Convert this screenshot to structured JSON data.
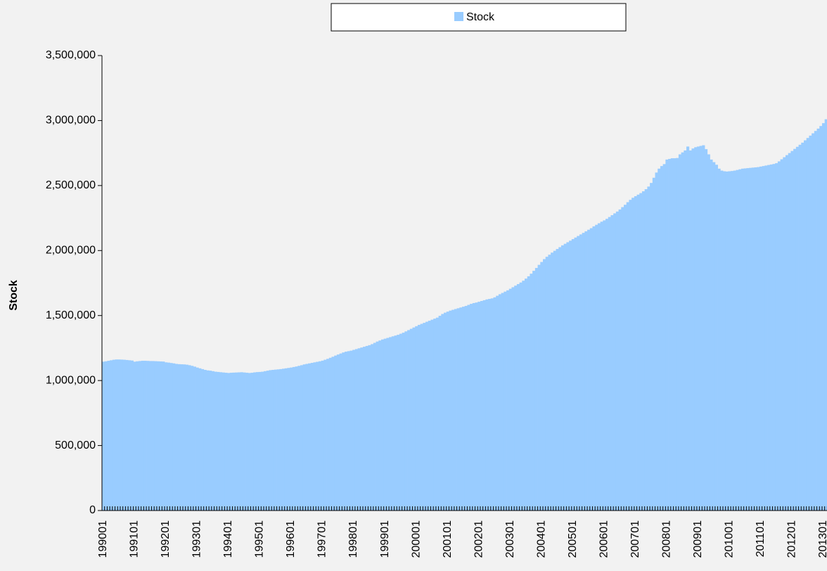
{
  "chart_data": {
    "type": "bar",
    "y_label": "Stock",
    "legend": "top",
    "ylim": [
      0,
      3500000
    ],
    "yticks": [
      0,
      {
        "value": 500000,
        "label": "500,000"
      },
      {
        "value": 1000000,
        "label": "1,000,000"
      },
      {
        "value": 1500000,
        "label": "1,500,000"
      },
      {
        "value": 2000000,
        "label": "2,000,000"
      },
      {
        "value": 2500000,
        "label": "2,500,000"
      },
      {
        "value": 3000000,
        "label": "3,000,000"
      },
      {
        "value": 3500000,
        "label": "3,500,000"
      }
    ],
    "categories": [
      "199001",
      null,
      null,
      null,
      null,
      null,
      null,
      null,
      null,
      null,
      null,
      null,
      "199101",
      null,
      null,
      null,
      null,
      null,
      null,
      null,
      null,
      null,
      null,
      null,
      "199201",
      null,
      null,
      null,
      null,
      null,
      null,
      null,
      null,
      null,
      null,
      null,
      "199301",
      null,
      null,
      null,
      null,
      null,
      null,
      null,
      null,
      null,
      null,
      null,
      "199401",
      null,
      null,
      null,
      null,
      null,
      null,
      null,
      null,
      null,
      null,
      null,
      "199501",
      null,
      null,
      null,
      null,
      null,
      null,
      null,
      null,
      null,
      null,
      null,
      "199601",
      null,
      null,
      null,
      null,
      null,
      null,
      null,
      null,
      null,
      null,
      null,
      "199701",
      null,
      null,
      null,
      null,
      null,
      null,
      null,
      null,
      null,
      null,
      null,
      "199801",
      null,
      null,
      null,
      null,
      null,
      null,
      null,
      null,
      null,
      null,
      null,
      "199901",
      null,
      null,
      null,
      null,
      null,
      null,
      null,
      null,
      null,
      null,
      null,
      "200001",
      null,
      null,
      null,
      null,
      null,
      null,
      null,
      null,
      null,
      null,
      null,
      "200101",
      null,
      null,
      null,
      null,
      null,
      null,
      null,
      null,
      null,
      null,
      null,
      "200201",
      null,
      null,
      null,
      null,
      null,
      null,
      null,
      null,
      null,
      null,
      null,
      "200301",
      null,
      null,
      null,
      null,
      null,
      null,
      null,
      null,
      null,
      null,
      null,
      "200401",
      null,
      null,
      null,
      null,
      null,
      null,
      null,
      null,
      null,
      null,
      null,
      "200501",
      null,
      null,
      null,
      null,
      null,
      null,
      null,
      null,
      null,
      null,
      null,
      "200601",
      null,
      null,
      null,
      null,
      null,
      null,
      null,
      null,
      null,
      null,
      null,
      "200701",
      null,
      null,
      null,
      null,
      null,
      null,
      null,
      null,
      null,
      null,
      null,
      "200801",
      null,
      null,
      null,
      null,
      null,
      null,
      null,
      null,
      null,
      null,
      null,
      "200901",
      null,
      null,
      null,
      null,
      null,
      null,
      null,
      null,
      null,
      null,
      null,
      "201001",
      null,
      null,
      null,
      null,
      null,
      null,
      null,
      null,
      null,
      null,
      null,
      "201101",
      null,
      null,
      null,
      null,
      null,
      null,
      null,
      null,
      null,
      null,
      null,
      "201201",
      null,
      null,
      null,
      null,
      null,
      null,
      null,
      null,
      null,
      null,
      null,
      "201301",
      null,
      null
    ],
    "series": [
      {
        "name": "Stock",
        "color": "#99ccff",
        "values": [
          1145000,
          1148000,
          1152000,
          1156000,
          1160000,
          1162000,
          1162000,
          1161000,
          1160000,
          1158000,
          1156000,
          1154000,
          1145000,
          1148000,
          1150000,
          1152000,
          1152000,
          1151000,
          1150000,
          1150000,
          1149000,
          1148000,
          1147000,
          1146000,
          1140000,
          1138000,
          1135000,
          1132000,
          1128000,
          1126000,
          1125000,
          1124000,
          1122000,
          1118000,
          1113000,
          1107000,
          1100000,
          1094000,
          1088000,
          1082000,
          1078000,
          1076000,
          1072000,
          1068000,
          1066000,
          1064000,
          1062000,
          1060000,
          1058000,
          1060000,
          1061000,
          1062000,
          1063000,
          1064000,
          1062000,
          1060000,
          1058000,
          1060000,
          1063000,
          1065000,
          1066000,
          1068000,
          1072000,
          1076000,
          1080000,
          1082000,
          1084000,
          1086000,
          1088000,
          1091000,
          1094000,
          1097000,
          1100000,
          1104000,
          1108000,
          1113000,
          1118000,
          1124000,
          1128000,
          1132000,
          1136000,
          1140000,
          1144000,
          1148000,
          1153000,
          1160000,
          1167000,
          1175000,
          1183000,
          1192000,
          1200000,
          1208000,
          1216000,
          1222000,
          1226000,
          1230000,
          1236000,
          1242000,
          1248000,
          1254000,
          1260000,
          1266000,
          1272000,
          1280000,
          1290000,
          1300000,
          1308000,
          1316000,
          1322000,
          1328000,
          1334000,
          1340000,
          1346000,
          1352000,
          1360000,
          1368000,
          1378000,
          1388000,
          1398000,
          1408000,
          1418000,
          1428000,
          1436000,
          1444000,
          1452000,
          1460000,
          1468000,
          1476000,
          1484000,
          1498000,
          1512000,
          1522000,
          1530000,
          1538000,
          1544000,
          1550000,
          1556000,
          1562000,
          1568000,
          1574000,
          1582000,
          1590000,
          1596000,
          1600000,
          1606000,
          1612000,
          1618000,
          1624000,
          1628000,
          1632000,
          1640000,
          1652000,
          1664000,
          1674000,
          1684000,
          1694000,
          1706000,
          1718000,
          1730000,
          1742000,
          1754000,
          1768000,
          1784000,
          1802000,
          1822000,
          1844000,
          1866000,
          1890000,
          1912000,
          1934000,
          1952000,
          1968000,
          1984000,
          1998000,
          2012000,
          2026000,
          2040000,
          2052000,
          2064000,
          2076000,
          2088000,
          2100000,
          2112000,
          2124000,
          2136000,
          2148000,
          2160000,
          2172000,
          2186000,
          2198000,
          2210000,
          2222000,
          2232000,
          2244000,
          2258000,
          2272000,
          2286000,
          2300000,
          2316000,
          2334000,
          2352000,
          2372000,
          2390000,
          2406000,
          2418000,
          2430000,
          2442000,
          2456000,
          2472000,
          2492000,
          2520000,
          2560000,
          2600000,
          2630000,
          2650000,
          2665000,
          2700000,
          2705000,
          2710000,
          2710000,
          2712000,
          2740000,
          2755000,
          2770000,
          2800000,
          2770000,
          2785000,
          2795000,
          2800000,
          2805000,
          2810000,
          2780000,
          2740000,
          2700000,
          2680000,
          2660000,
          2630000,
          2615000,
          2610000,
          2608000,
          2610000,
          2612000,
          2615000,
          2620000,
          2625000,
          2630000,
          2632000,
          2634000,
          2636000,
          2638000,
          2640000,
          2642000,
          2646000,
          2650000,
          2654000,
          2658000,
          2662000,
          2666000,
          2672000,
          2686000,
          2702000,
          2718000,
          2734000,
          2750000,
          2766000,
          2782000,
          2798000,
          2814000,
          2830000,
          2848000,
          2866000,
          2884000,
          2902000,
          2920000,
          2938000,
          2958000,
          2980000,
          3010000,
          3040000
        ]
      }
    ]
  }
}
